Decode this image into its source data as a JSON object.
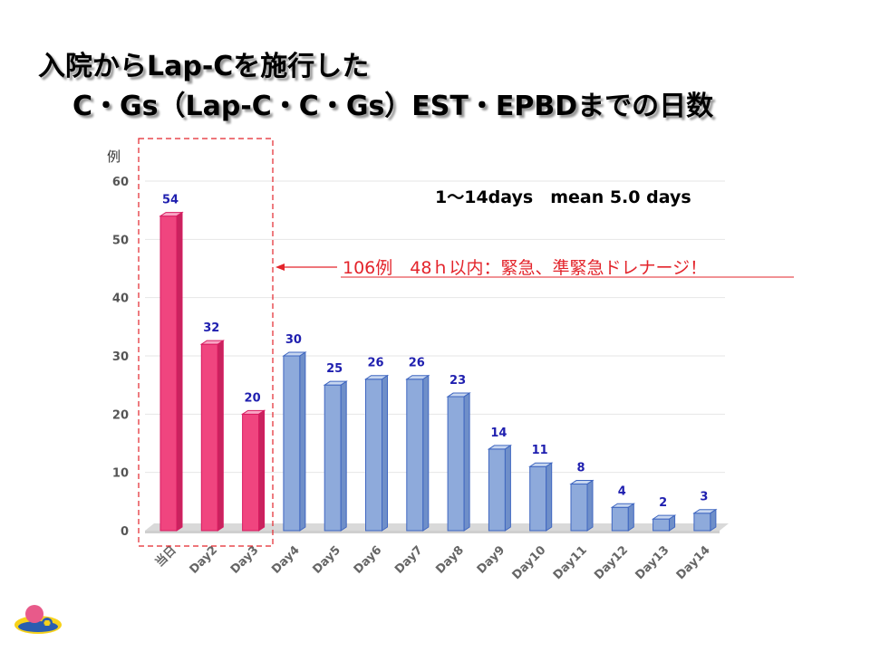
{
  "title": {
    "line1": "入院からLap-Cを施行した",
    "line2": "C・Gs（Lap-C・C・Gs）EST・EPBDまでの日数"
  },
  "chart_data": {
    "type": "bar",
    "ylabel": "例",
    "ylim": [
      0,
      60
    ],
    "yticks": [
      0,
      10,
      20,
      30,
      40,
      50,
      60
    ],
    "categories": [
      "当日",
      "Day2",
      "Day3",
      "Day4",
      "Day5",
      "Day6",
      "Day7",
      "Day8",
      "Day9",
      "Day10",
      "Day11",
      "Day12",
      "Day13",
      "Day14"
    ],
    "values": [
      54,
      32,
      20,
      30,
      25,
      26,
      26,
      23,
      14,
      11,
      8,
      4,
      2,
      3
    ],
    "highlight_count": 3,
    "colors": {
      "highlight": "#f0457f",
      "normal": "#8eaadb",
      "highlight_edge": "#d81b60",
      "normal_edge": "#3f66c0",
      "label": "#1f1faf",
      "annotation": "#e3242b"
    },
    "stats_text": "1〜14days　mean  5.0 days",
    "annotation": "106例　48ｈ以内：緊急、準緊急ドレナージ！",
    "grid": true
  }
}
